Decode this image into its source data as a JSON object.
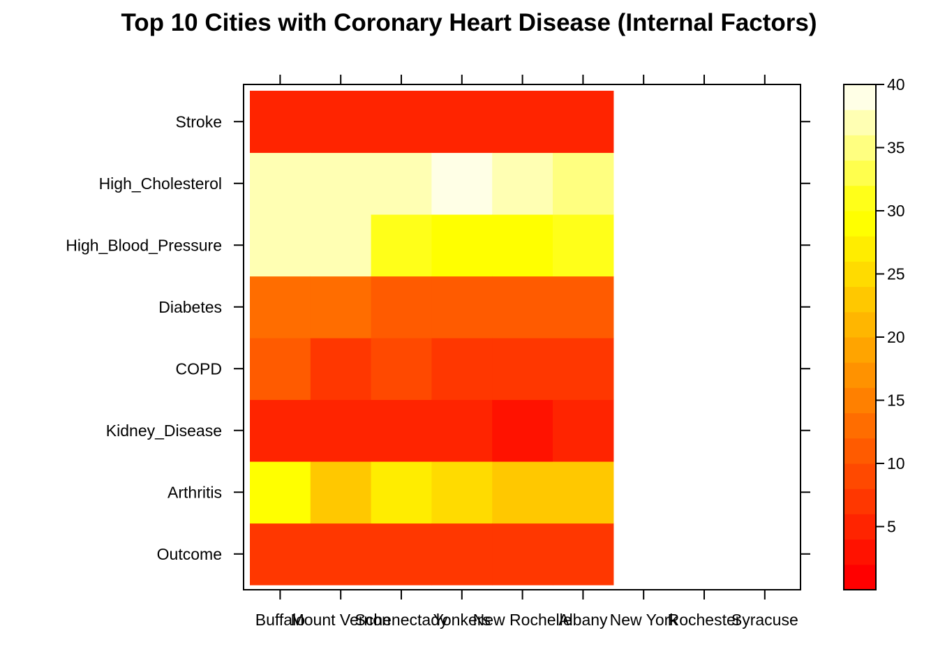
{
  "chart_data": {
    "type": "heatmap",
    "title": "Top 10 Cities with Coronary Heart Disease (Internal Factors)",
    "xlabel": "",
    "ylabel": "",
    "x_categories": [
      "Buffalo",
      "Mount Vernon",
      "Schenectady",
      "Yonkers",
      "New Rochelle",
      "Albany",
      "New York",
      "Rochester",
      "Syracuse"
    ],
    "y_categories": [
      "Outcome",
      "Arthritis",
      "Kidney_Disease",
      "COPD",
      "Diabetes",
      "High_Blood_Pressure",
      "High_Cholesterol",
      "Stroke"
    ],
    "values": [
      [
        6,
        28,
        4,
        10,
        13,
        37,
        37,
        4
      ],
      [
        6,
        23,
        4,
        7,
        13,
        37,
        37,
        4
      ],
      [
        6,
        26,
        4,
        9,
        11,
        31,
        37,
        4
      ],
      [
        6,
        24,
        4,
        7,
        11,
        29,
        40,
        4
      ],
      [
        6,
        22,
        2,
        7,
        11,
        29,
        37,
        4
      ],
      [
        6,
        22,
        5,
        7,
        11,
        31,
        35,
        4
      ],
      [
        null,
        null,
        null,
        null,
        null,
        null,
        null,
        null
      ],
      [
        null,
        null,
        null,
        null,
        null,
        null,
        null,
        null
      ],
      [
        null,
        null,
        null,
        null,
        null,
        null,
        null,
        null
      ]
    ],
    "colorbar": {
      "ticks": [
        5,
        10,
        15,
        20,
        25,
        30,
        35,
        40
      ],
      "min": 0,
      "max": 40,
      "levels": 20,
      "colormap": "heat",
      "low_color": "#ff0000",
      "high_color": "#ffffe0"
    },
    "grid": false,
    "legend": "right colorbar"
  }
}
